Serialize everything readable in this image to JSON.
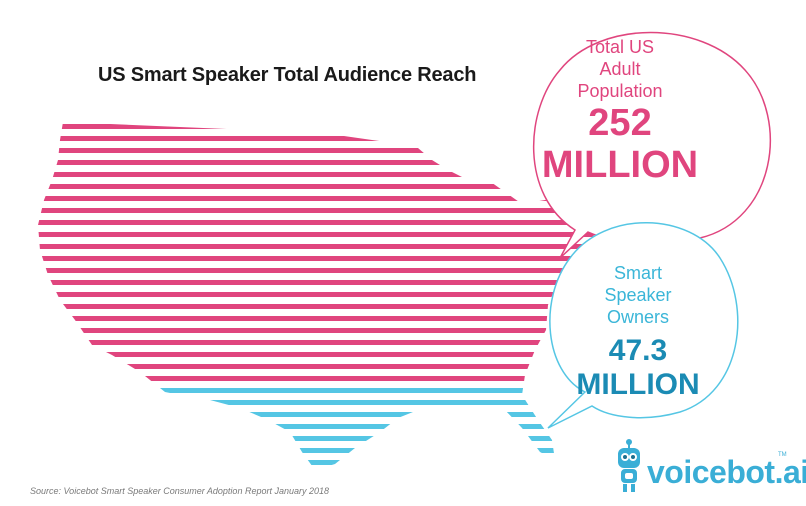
{
  "chart_data": {
    "type": "bar",
    "title": "US Smart Speaker Total Audience Reach",
    "categories": [
      "Total US Adult Population",
      "Smart Speaker Owners"
    ],
    "series": [
      {
        "values": [
          252,
          47.3
        ]
      }
    ],
    "unit": "MILLION",
    "annotations": [
      {
        "label_lines": [
          "Total US",
          "Adult",
          "Population"
        ],
        "value_text": "252",
        "unit_text": "MILLION"
      },
      {
        "label_lines": [
          "Smart",
          "Speaker Owners"
        ],
        "value_text": "47.3",
        "unit_text": "MILLION"
      }
    ],
    "share_of_population": 0.188
  },
  "colors": {
    "population": "#e0457e",
    "owners": "#55c6e4",
    "owners_text": "#1b8bb4"
  },
  "source": "Source: Voicebot Smart Speaker Consumer Adoption Report January 2018",
  "logo": {
    "text": "voicebot.ai",
    "tm": "TM",
    "icon": "robot-icon"
  }
}
